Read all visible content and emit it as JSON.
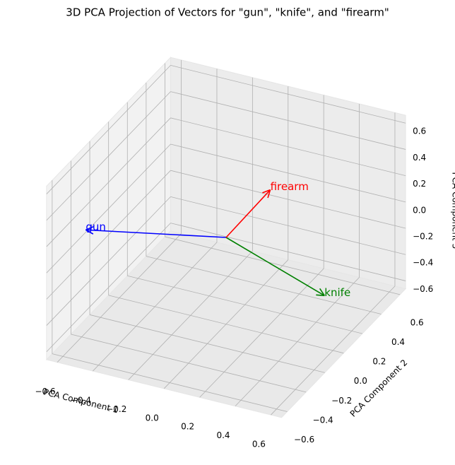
{
  "chart_data": {
    "type": "quiver3d",
    "title": "3D PCA Projection of Vectors for \"gun\", \"knife\", and \"firearm\"",
    "xlabel": "PCA Component 1",
    "ylabel": "PCA Component 2",
    "zlabel": "PCA Component 3",
    "xlim": [
      -0.66,
      0.66
    ],
    "ylim": [
      -0.66,
      0.66
    ],
    "zlim": [
      -0.66,
      0.66
    ],
    "xticks": [
      {
        "value": -0.6,
        "label": "−0.6"
      },
      {
        "value": -0.4,
        "label": "−0.4"
      },
      {
        "value": -0.2,
        "label": "−0.2"
      },
      {
        "value": 0,
        "label": "0.0"
      },
      0.2,
      0.4,
      0.6
    ],
    "yticks": [
      {
        "value": -0.6,
        "label": "−0.6"
      },
      {
        "value": -0.4,
        "label": "−0.4"
      },
      {
        "value": -0.2,
        "label": "−0.2"
      },
      {
        "value": 0,
        "label": "0.0"
      },
      0.2,
      0.4,
      0.6
    ],
    "zticks": [
      {
        "value": -0.6,
        "label": "−0.6"
      },
      {
        "value": -0.4,
        "label": "−0.4"
      },
      {
        "value": -0.2,
        "label": "−0.2"
      },
      {
        "value": 0,
        "label": "0.0"
      },
      0.2,
      0.4,
      0.6
    ],
    "grid": true,
    "series": [
      {
        "name": "gun",
        "color": "blue",
        "values": [
          -0.63,
          -0.3,
          0.07
        ]
      },
      {
        "name": "knife",
        "color": "green",
        "values": [
          0.5,
          0.1,
          -0.35
        ]
      },
      {
        "name": "firearm",
        "color": "red",
        "values": [
          0.09,
          0.3,
          0.17
        ]
      }
    ]
  }
}
